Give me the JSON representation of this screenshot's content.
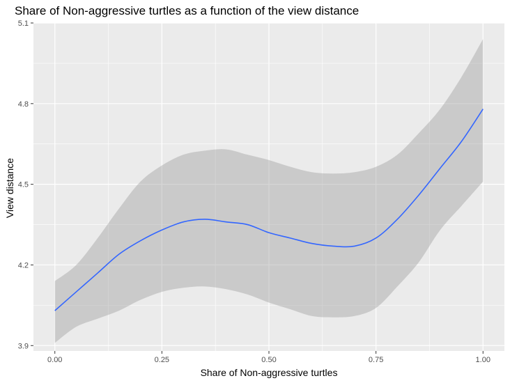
{
  "chart_data": {
    "type": "line",
    "title": "Share of Non-aggressive turtles as a function of the view distance",
    "xlabel": "Share of Non-aggressive turtles",
    "ylabel": "View distance",
    "xlim": [
      -0.05,
      1.05
    ],
    "ylim": [
      3.88,
      5.1
    ],
    "x_ticks": [
      0.0,
      0.25,
      0.5,
      0.75,
      1.0
    ],
    "x_tick_labels": [
      "0.00",
      "0.25",
      "0.50",
      "0.75",
      "1.00"
    ],
    "y_ticks": [
      3.9,
      4.2,
      4.5,
      4.8,
      5.1
    ],
    "y_tick_labels": [
      "3.9",
      "4.2",
      "4.5",
      "4.8",
      "5.1"
    ],
    "grid": true,
    "series": [
      {
        "smoother": true,
        "confidence_band": true,
        "x": [
          0.0,
          0.05,
          0.1,
          0.15,
          0.2,
          0.25,
          0.3,
          0.35,
          0.4,
          0.45,
          0.5,
          0.55,
          0.6,
          0.65,
          0.7,
          0.75,
          0.8,
          0.85,
          0.9,
          0.95,
          1.0
        ],
        "y": [
          4.03,
          4.1,
          4.17,
          4.24,
          4.29,
          4.33,
          4.36,
          4.37,
          4.36,
          4.35,
          4.32,
          4.3,
          4.28,
          4.27,
          4.27,
          4.3,
          4.37,
          4.46,
          4.56,
          4.66,
          4.78
        ],
        "upper": [
          4.14,
          4.2,
          4.3,
          4.41,
          4.51,
          4.57,
          4.61,
          4.625,
          4.63,
          4.61,
          4.59,
          4.565,
          4.545,
          4.54,
          4.545,
          4.565,
          4.61,
          4.69,
          4.78,
          4.9,
          5.04
        ],
        "lower": [
          3.91,
          3.97,
          4.0,
          4.03,
          4.07,
          4.1,
          4.115,
          4.12,
          4.11,
          4.09,
          4.06,
          4.035,
          4.01,
          4.005,
          4.01,
          4.04,
          4.12,
          4.21,
          4.33,
          4.42,
          4.51
        ],
        "color": "#3366FF",
        "band_color": "#999999"
      }
    ],
    "colors": {
      "panel_background": "#EBEBEB",
      "grid_major": "#FFFFFF",
      "tick_text": "#4D4D4D"
    }
  }
}
